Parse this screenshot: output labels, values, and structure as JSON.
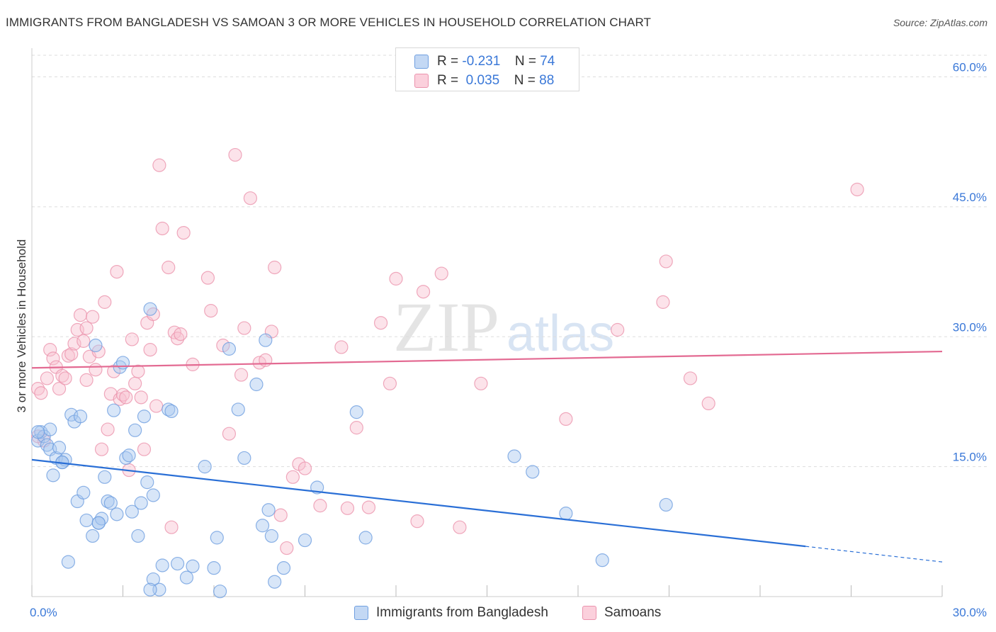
{
  "title": "IMMIGRANTS FROM BANGLADESH VS SAMOAN 3 OR MORE VEHICLES IN HOUSEHOLD CORRELATION CHART",
  "source": "Source: ZipAtlas.com",
  "watermark": {
    "zip": "ZIP",
    "atlas": "atlas"
  },
  "legend": {
    "r_label": "R =",
    "n_label": "N =",
    "rows": [
      {
        "r": "-0.231",
        "n": "74"
      },
      {
        "r": "0.035",
        "n": "88"
      }
    ]
  },
  "colors": {
    "blue_fill": "#a8c8f0",
    "blue_stroke": "#6f9fe0",
    "blue_line": "#2a6fd6",
    "pink_fill": "#f8c0d0",
    "pink_stroke": "#eb93ad",
    "pink_line": "#e36a92",
    "tick_text": "#3a78d8",
    "grid": "#dddddd"
  },
  "chart_data": {
    "type": "scatter",
    "xlabel": "",
    "ylabel": "3 or more Vehicles in Household",
    "xlim": [
      0,
      30
    ],
    "ylim": [
      0,
      62.5
    ],
    "x_tick_labels": [
      "0.0%",
      "30.0%"
    ],
    "y_ticks": [
      15,
      30,
      45,
      60
    ],
    "y_tick_labels": [
      "15.0%",
      "30.0%",
      "45.0%",
      "60.0%"
    ],
    "grid": "horizontal dashed",
    "series": [
      {
        "name": "Immigrants from Bangladesh",
        "color": "#a8c8f0",
        "trend": {
          "x": [
            0,
            25.5
          ],
          "y": [
            15.8,
            5.8
          ],
          "dashed_to": [
            30,
            4.0
          ]
        },
        "points": [
          [
            0.2,
            18.0
          ],
          [
            0.3,
            19.0
          ],
          [
            0.4,
            18.5
          ],
          [
            0.5,
            17.5
          ],
          [
            0.6,
            17.0
          ],
          [
            0.6,
            19.3
          ],
          [
            0.7,
            14.0
          ],
          [
            0.8,
            16.0
          ],
          [
            0.9,
            17.2
          ],
          [
            1.0,
            15.5
          ],
          [
            1.1,
            15.8
          ],
          [
            1.2,
            4.0
          ],
          [
            1.3,
            21.0
          ],
          [
            1.4,
            20.2
          ],
          [
            1.5,
            11.0
          ],
          [
            1.6,
            20.8
          ],
          [
            1.7,
            12.0
          ],
          [
            1.8,
            8.8
          ],
          [
            2.0,
            7.0
          ],
          [
            2.1,
            29.0
          ],
          [
            2.2,
            8.5
          ],
          [
            2.3,
            9.0
          ],
          [
            2.4,
            13.8
          ],
          [
            2.5,
            11.0
          ],
          [
            2.6,
            10.8
          ],
          [
            2.7,
            21.5
          ],
          [
            2.8,
            9.5
          ],
          [
            2.9,
            26.5
          ],
          [
            3.0,
            27.0
          ],
          [
            3.1,
            16.0
          ],
          [
            3.2,
            16.3
          ],
          [
            3.3,
            9.8
          ],
          [
            3.4,
            19.2
          ],
          [
            3.5,
            7.0
          ],
          [
            3.6,
            10.8
          ],
          [
            3.7,
            20.8
          ],
          [
            3.8,
            13.2
          ],
          [
            3.9,
            33.2
          ],
          [
            4.0,
            11.7
          ],
          [
            4.0,
            2.0
          ],
          [
            4.2,
            0.8
          ],
          [
            4.3,
            3.6
          ],
          [
            4.5,
            21.6
          ],
          [
            4.6,
            21.4
          ],
          [
            4.8,
            3.8
          ],
          [
            5.1,
            2.2
          ],
          [
            5.3,
            3.5
          ],
          [
            5.7,
            15.0
          ],
          [
            6.1,
            6.8
          ],
          [
            6.2,
            0.6
          ],
          [
            6.5,
            28.6
          ],
          [
            6.8,
            21.6
          ],
          [
            7.0,
            16.0
          ],
          [
            7.4,
            24.5
          ],
          [
            7.6,
            8.2
          ],
          [
            7.7,
            29.6
          ],
          [
            7.8,
            10.0
          ],
          [
            7.9,
            7.0
          ],
          [
            8.0,
            1.7
          ],
          [
            8.3,
            3.3
          ],
          [
            9.0,
            6.5
          ],
          [
            9.4,
            12.6
          ],
          [
            10.7,
            21.3
          ],
          [
            11.0,
            6.8
          ],
          [
            15.9,
            16.2
          ],
          [
            16.5,
            14.4
          ],
          [
            17.6,
            9.6
          ],
          [
            18.8,
            4.2
          ],
          [
            20.9,
            10.6
          ],
          [
            0.2,
            19.0
          ],
          [
            1.0,
            15.5
          ],
          [
            2.2,
            8.5
          ],
          [
            3.9,
            0.8
          ],
          [
            6.0,
            3.3
          ]
        ]
      },
      {
        "name": "Samoans",
        "color": "#f8c0d0",
        "trend": {
          "x": [
            0,
            30
          ],
          "y": [
            26.4,
            28.3
          ]
        },
        "points": [
          [
            0.2,
            24.0
          ],
          [
            0.3,
            23.5
          ],
          [
            0.4,
            18.0
          ],
          [
            0.5,
            25.2
          ],
          [
            0.6,
            28.5
          ],
          [
            0.7,
            27.5
          ],
          [
            0.8,
            26.5
          ],
          [
            0.9,
            24.0
          ],
          [
            1.0,
            25.5
          ],
          [
            1.1,
            25.2
          ],
          [
            1.2,
            27.8
          ],
          [
            1.3,
            28.0
          ],
          [
            1.4,
            29.2
          ],
          [
            1.5,
            30.8
          ],
          [
            1.6,
            32.5
          ],
          [
            1.7,
            29.5
          ],
          [
            1.8,
            31.0
          ],
          [
            1.9,
            27.7
          ],
          [
            2.0,
            32.3
          ],
          [
            2.1,
            26.2
          ],
          [
            2.2,
            28.3
          ],
          [
            2.3,
            17.0
          ],
          [
            2.4,
            34.0
          ],
          [
            2.5,
            19.3
          ],
          [
            2.6,
            23.4
          ],
          [
            2.7,
            26.0
          ],
          [
            2.8,
            37.5
          ],
          [
            2.9,
            22.8
          ],
          [
            3.0,
            23.3
          ],
          [
            3.1,
            23.0
          ],
          [
            3.2,
            14.6
          ],
          [
            3.3,
            29.7
          ],
          [
            3.4,
            24.6
          ],
          [
            3.5,
            26.0
          ],
          [
            3.6,
            23.0
          ],
          [
            3.7,
            17.0
          ],
          [
            3.8,
            31.6
          ],
          [
            3.9,
            28.5
          ],
          [
            4.0,
            32.6
          ],
          [
            4.1,
            22.0
          ],
          [
            4.2,
            49.8
          ],
          [
            4.3,
            42.5
          ],
          [
            4.5,
            38.0
          ],
          [
            4.6,
            8.0
          ],
          [
            4.7,
            30.5
          ],
          [
            4.8,
            29.8
          ],
          [
            4.9,
            30.3
          ],
          [
            5.0,
            42.0
          ],
          [
            5.3,
            26.8
          ],
          [
            5.8,
            36.8
          ],
          [
            5.9,
            33.0
          ],
          [
            6.3,
            29.0
          ],
          [
            6.5,
            18.8
          ],
          [
            6.7,
            51.0
          ],
          [
            6.9,
            25.6
          ],
          [
            7.0,
            31.0
          ],
          [
            7.2,
            46.0
          ],
          [
            7.5,
            27.0
          ],
          [
            7.7,
            27.3
          ],
          [
            7.9,
            30.6
          ],
          [
            8.0,
            38.0
          ],
          [
            8.2,
            9.4
          ],
          [
            8.4,
            5.6
          ],
          [
            8.6,
            13.8
          ],
          [
            8.8,
            15.3
          ],
          [
            9.0,
            14.8
          ],
          [
            9.5,
            10.5
          ],
          [
            10.2,
            28.8
          ],
          [
            10.4,
            10.2
          ],
          [
            10.7,
            19.5
          ],
          [
            11.1,
            10.3
          ],
          [
            11.5,
            31.6
          ],
          [
            11.8,
            24.6
          ],
          [
            12.0,
            36.7
          ],
          [
            12.7,
            8.7
          ],
          [
            12.9,
            35.2
          ],
          [
            13.5,
            37.3
          ],
          [
            14.1,
            8.0
          ],
          [
            14.8,
            24.6
          ],
          [
            17.6,
            20.5
          ],
          [
            19.3,
            30.8
          ],
          [
            20.8,
            34.0
          ],
          [
            20.9,
            38.7
          ],
          [
            21.7,
            25.2
          ],
          [
            22.3,
            22.3
          ],
          [
            27.2,
            47.0
          ],
          [
            0.2,
            18.5
          ],
          [
            1.8,
            25.0
          ]
        ]
      }
    ]
  }
}
